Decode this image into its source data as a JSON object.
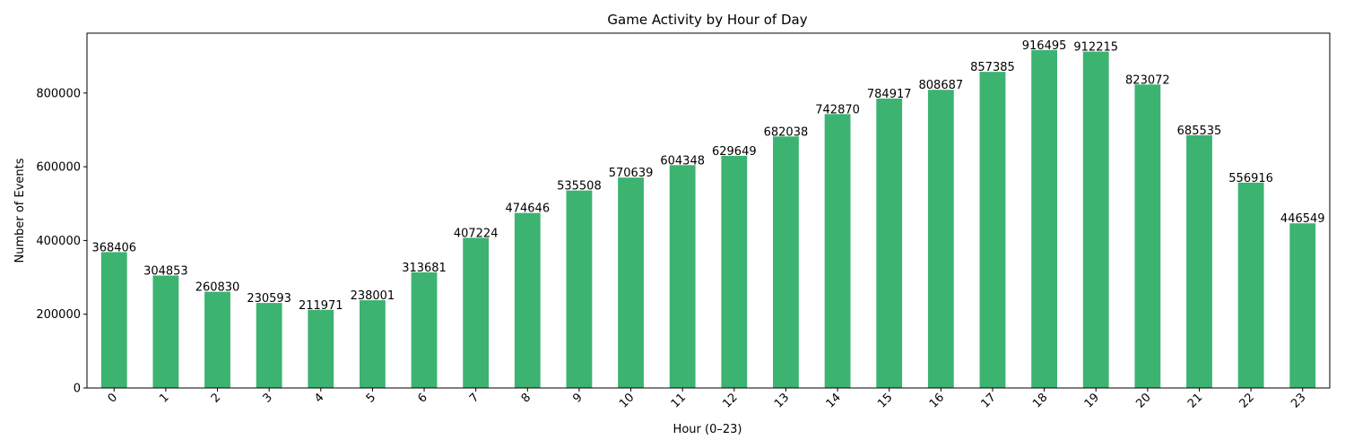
{
  "chart_data": {
    "type": "bar",
    "title": "Game Activity by Hour of Day",
    "xlabel": "Hour (0–23)",
    "ylabel": "Number of Events",
    "categories": [
      "0",
      "1",
      "2",
      "3",
      "4",
      "5",
      "6",
      "7",
      "8",
      "9",
      "10",
      "11",
      "12",
      "13",
      "14",
      "15",
      "16",
      "17",
      "18",
      "19",
      "20",
      "21",
      "22",
      "23"
    ],
    "values": [
      368406,
      304853,
      260830,
      230593,
      211971,
      238001,
      313681,
      407224,
      474646,
      535508,
      570639,
      604348,
      629649,
      682038,
      742870,
      784917,
      808687,
      857385,
      916495,
      912215,
      823072,
      685535,
      556916,
      446549
    ],
    "yticks": [
      0,
      200000,
      400000,
      600000,
      800000
    ],
    "ylim": [
      0,
      962320
    ],
    "grid": false,
    "legend": "none",
    "bar_color": "#3cb371",
    "data_labels": true
  }
}
